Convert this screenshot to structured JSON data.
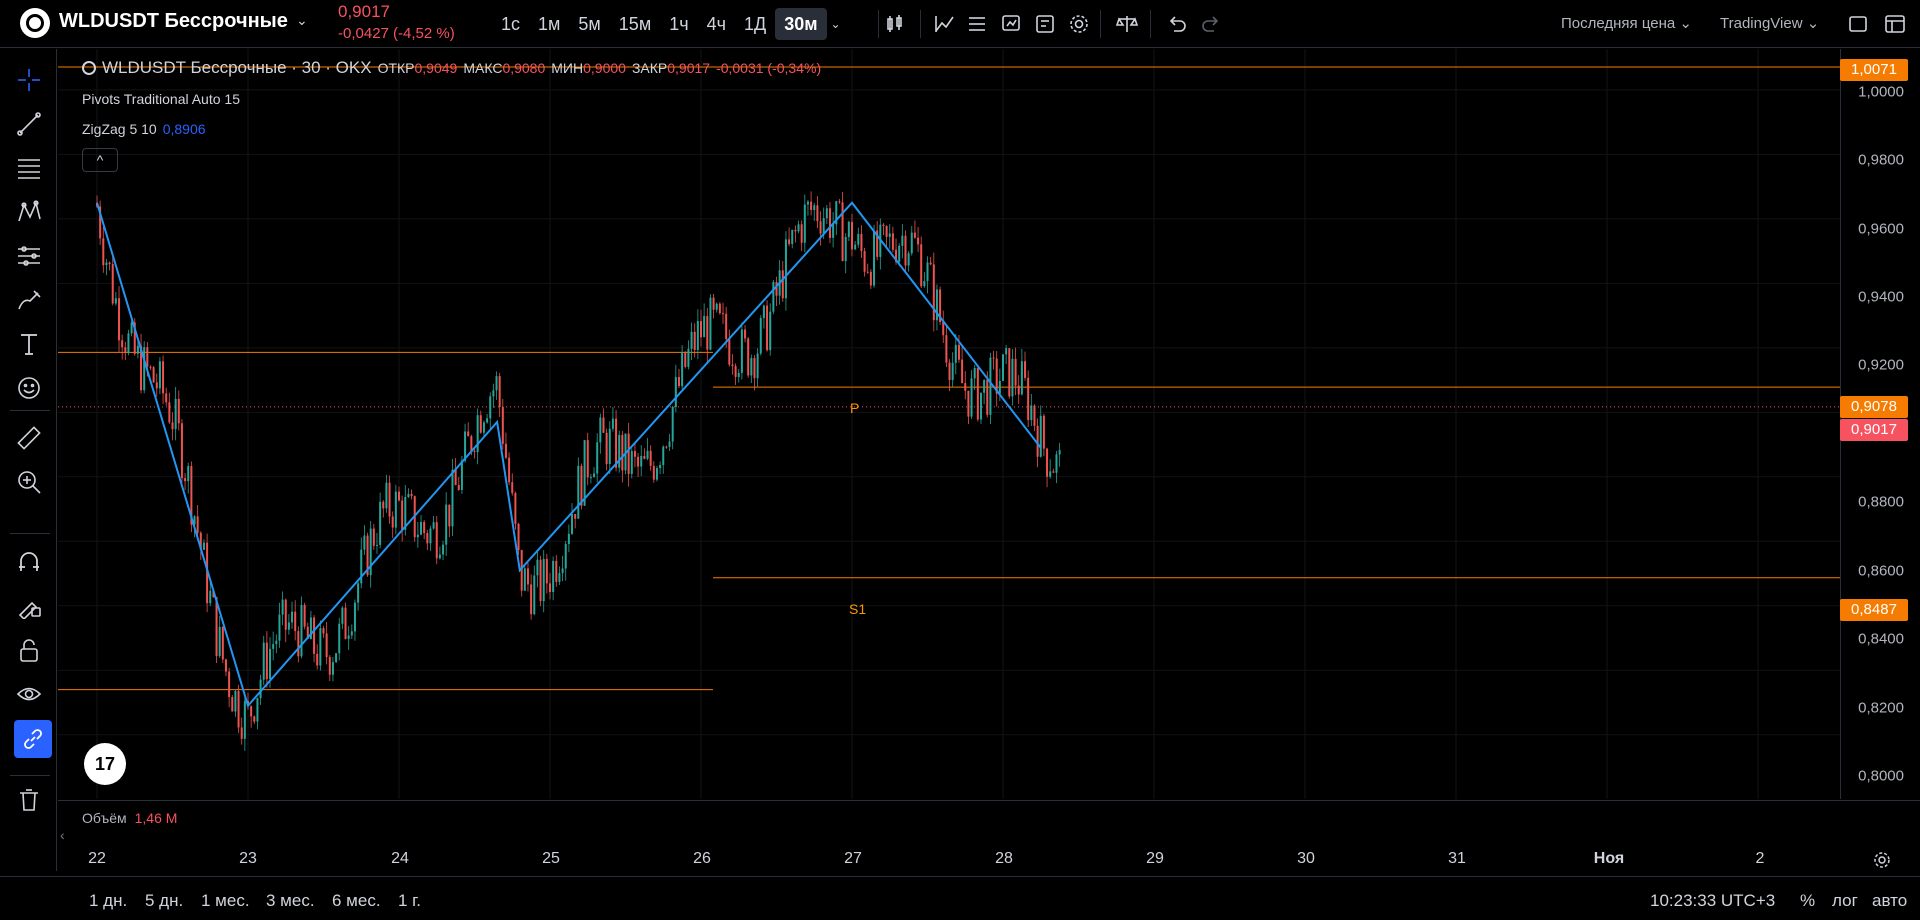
{
  "header": {
    "symbol": "WLDUSDT Бессрочные",
    "last_price": "0,9017",
    "change": "-0,0427 (-4,52 %)",
    "intervals": [
      "1с",
      "1м",
      "5м",
      "15м",
      "1ч",
      "4ч",
      "1Д",
      "30м"
    ],
    "active_interval": "30м",
    "price_type": "Последняя цена",
    "platform": "TradingView"
  },
  "legend": {
    "symbol_line": "WLDUSDT Бессрочные · 30 · OKX",
    "open_label": "ОТКР",
    "open": "0,9049",
    "high_label": "МАКС",
    "high": "0,9080",
    "low_label": "МИН",
    "low": "0,9000",
    "close_label": "ЗАКР",
    "close": "0,9017",
    "change": "-0,0031 (-0,34%)",
    "indicator1": "Pivots Traditional Auto 15",
    "indicator2_name": "ZigZag 5 10",
    "indicator2_value": "0,8906",
    "collapse": "^"
  },
  "price_axis": {
    "labels": [
      "1,0000",
      "0,9800",
      "0,9600",
      "0,9400",
      "0,9200",
      "0,8800",
      "0,8600",
      "0,8400",
      "0,8200",
      "0,8000"
    ],
    "tags": [
      {
        "text": "1,0071",
        "color": "#f57c00"
      },
      {
        "text": "0,9078",
        "color": "#f57c00"
      },
      {
        "text": "0,9017",
        "color": "#f7525f"
      },
      {
        "text": "0,8487",
        "color": "#f57c00"
      }
    ]
  },
  "pivots": {
    "p": "P",
    "s1": "S1"
  },
  "time_axis": {
    "labels": [
      "22",
      "23",
      "24",
      "25",
      "26",
      "27",
      "28",
      "29",
      "30",
      "31",
      "Ноя",
      "2"
    ]
  },
  "volume": {
    "label": "Объём",
    "value": "1,46 M"
  },
  "bottom": {
    "ranges": [
      "1 дн.",
      "5 дн.",
      "1 мес.",
      "3 мес.",
      "6 мес.",
      "1 г."
    ],
    "clock": "10:23:33 UTC+3",
    "percent": "%",
    "log": "лог",
    "auto": "авто"
  },
  "chart_data": {
    "type": "candlestick",
    "timeframe": "30m",
    "x": [
      "22",
      "23",
      "24",
      "25",
      "26",
      "27",
      "28"
    ],
    "ylim": [
      0.79,
      1.0071
    ],
    "zigzag": [
      {
        "x": "22",
        "y": 0.965
      },
      {
        "x": "23",
        "y": 0.809
      },
      {
        "x": "24.65",
        "y": 0.897
      },
      {
        "x": "24.8",
        "y": 0.851
      },
      {
        "x": "27",
        "y": 0.965
      },
      {
        "x": "28.25",
        "y": 0.889
      }
    ],
    "levels": [
      {
        "name": "P",
        "value": 0.9078
      },
      {
        "name": "S1",
        "value": 0.8487
      },
      {
        "name": "last",
        "value": 0.9017
      },
      {
        "name": "high",
        "value": 1.0071
      }
    ]
  }
}
